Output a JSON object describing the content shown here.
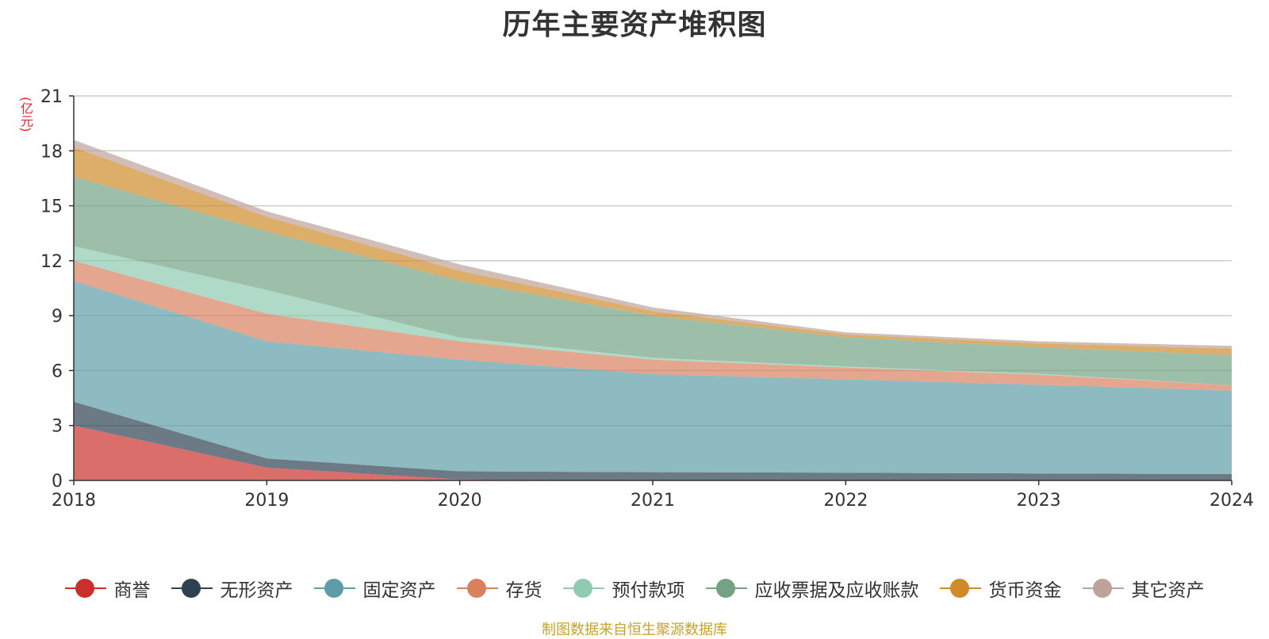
{
  "chart_data": {
    "type": "area",
    "stacked": true,
    "title": "历年主要资产堆积图",
    "ylabel": "(亿元)",
    "xlabel": "",
    "categories": [
      "2018",
      "2019",
      "2020",
      "2021",
      "2022",
      "2023",
      "2024"
    ],
    "ylim": [
      0,
      21
    ],
    "yticks": [
      0,
      3,
      6,
      9,
      12,
      15,
      18,
      21
    ],
    "grid": true,
    "legend_position": "bottom",
    "series": [
      {
        "name": "商誉",
        "color": "#c9302c",
        "values": [
          3.0,
          0.7,
          0.05,
          0.0,
          0.0,
          0.0,
          0.0
        ]
      },
      {
        "name": "无形资产",
        "color": "#2d4151",
        "values": [
          1.3,
          0.5,
          0.45,
          0.45,
          0.42,
          0.38,
          0.35
        ]
      },
      {
        "name": "固定资产",
        "color": "#5e9ca7",
        "values": [
          6.6,
          6.4,
          6.1,
          5.35,
          5.1,
          4.85,
          4.55
        ]
      },
      {
        "name": "存货",
        "color": "#d9805f",
        "values": [
          1.1,
          1.5,
          1.0,
          0.8,
          0.65,
          0.55,
          0.3
        ]
      },
      {
        "name": "预付款项",
        "color": "#8fcbb0",
        "values": [
          0.8,
          1.3,
          0.2,
          0.1,
          0.05,
          0.05,
          0.0
        ]
      },
      {
        "name": "应收票据及应收账款",
        "color": "#74a283",
        "values": [
          3.8,
          3.2,
          3.1,
          2.3,
          1.6,
          1.45,
          1.65
        ]
      },
      {
        "name": "货币资金",
        "color": "#cf8b2a",
        "values": [
          1.6,
          0.8,
          0.55,
          0.25,
          0.15,
          0.2,
          0.35
        ]
      },
      {
        "name": "其它资产",
        "color": "#bfa39b",
        "values": [
          0.4,
          0.3,
          0.35,
          0.2,
          0.12,
          0.12,
          0.15
        ]
      }
    ]
  },
  "footer": "制图数据来自恒生聚源数据库"
}
